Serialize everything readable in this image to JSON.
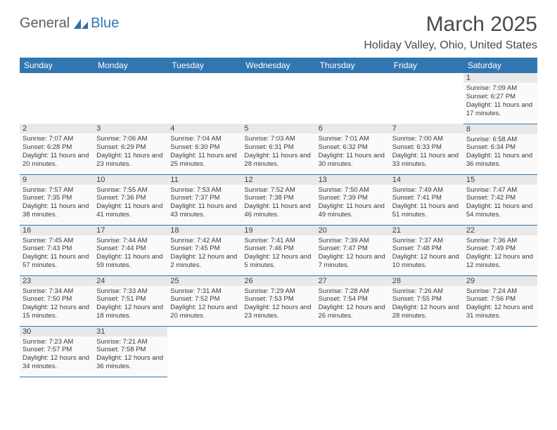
{
  "logo": {
    "word1": "General",
    "word2": "Blue"
  },
  "header": {
    "month_title": "March 2025",
    "location": "Holiday Valley, Ohio, United States"
  },
  "colors": {
    "header_bg": "#3276b1",
    "header_text": "#ffffff",
    "daynum_bg": "#e9e9e9",
    "cell_bg": "#fafafa",
    "border": "#3276b1",
    "text": "#3a3a3a"
  },
  "weekday_labels": [
    "Sunday",
    "Monday",
    "Tuesday",
    "Wednesday",
    "Thursday",
    "Friday",
    "Saturday"
  ],
  "weeks": [
    [
      null,
      null,
      null,
      null,
      null,
      null,
      {
        "n": "1",
        "sr": "7:09 AM",
        "ss": "6:27 PM",
        "dl": "11 hours and 17 minutes."
      }
    ],
    [
      {
        "n": "2",
        "sr": "7:07 AM",
        "ss": "6:28 PM",
        "dl": "11 hours and 20 minutes."
      },
      {
        "n": "3",
        "sr": "7:06 AM",
        "ss": "6:29 PM",
        "dl": "11 hours and 23 minutes."
      },
      {
        "n": "4",
        "sr": "7:04 AM",
        "ss": "6:30 PM",
        "dl": "11 hours and 25 minutes."
      },
      {
        "n": "5",
        "sr": "7:03 AM",
        "ss": "6:31 PM",
        "dl": "11 hours and 28 minutes."
      },
      {
        "n": "6",
        "sr": "7:01 AM",
        "ss": "6:32 PM",
        "dl": "11 hours and 30 minutes."
      },
      {
        "n": "7",
        "sr": "7:00 AM",
        "ss": "6:33 PM",
        "dl": "11 hours and 33 minutes."
      },
      {
        "n": "8",
        "sr": "6:58 AM",
        "ss": "6:34 PM",
        "dl": "11 hours and 36 minutes."
      }
    ],
    [
      {
        "n": "9",
        "sr": "7:57 AM",
        "ss": "7:35 PM",
        "dl": "11 hours and 38 minutes."
      },
      {
        "n": "10",
        "sr": "7:55 AM",
        "ss": "7:36 PM",
        "dl": "11 hours and 41 minutes."
      },
      {
        "n": "11",
        "sr": "7:53 AM",
        "ss": "7:37 PM",
        "dl": "11 hours and 43 minutes."
      },
      {
        "n": "12",
        "sr": "7:52 AM",
        "ss": "7:38 PM",
        "dl": "11 hours and 46 minutes."
      },
      {
        "n": "13",
        "sr": "7:50 AM",
        "ss": "7:39 PM",
        "dl": "11 hours and 49 minutes."
      },
      {
        "n": "14",
        "sr": "7:49 AM",
        "ss": "7:41 PM",
        "dl": "11 hours and 51 minutes."
      },
      {
        "n": "15",
        "sr": "7:47 AM",
        "ss": "7:42 PM",
        "dl": "11 hours and 54 minutes."
      }
    ],
    [
      {
        "n": "16",
        "sr": "7:45 AM",
        "ss": "7:43 PM",
        "dl": "11 hours and 57 minutes."
      },
      {
        "n": "17",
        "sr": "7:44 AM",
        "ss": "7:44 PM",
        "dl": "11 hours and 59 minutes."
      },
      {
        "n": "18",
        "sr": "7:42 AM",
        "ss": "7:45 PM",
        "dl": "12 hours and 2 minutes."
      },
      {
        "n": "19",
        "sr": "7:41 AM",
        "ss": "7:46 PM",
        "dl": "12 hours and 5 minutes."
      },
      {
        "n": "20",
        "sr": "7:39 AM",
        "ss": "7:47 PM",
        "dl": "12 hours and 7 minutes."
      },
      {
        "n": "21",
        "sr": "7:37 AM",
        "ss": "7:48 PM",
        "dl": "12 hours and 10 minutes."
      },
      {
        "n": "22",
        "sr": "7:36 AM",
        "ss": "7:49 PM",
        "dl": "12 hours and 12 minutes."
      }
    ],
    [
      {
        "n": "23",
        "sr": "7:34 AM",
        "ss": "7:50 PM",
        "dl": "12 hours and 15 minutes."
      },
      {
        "n": "24",
        "sr": "7:33 AM",
        "ss": "7:51 PM",
        "dl": "12 hours and 18 minutes."
      },
      {
        "n": "25",
        "sr": "7:31 AM",
        "ss": "7:52 PM",
        "dl": "12 hours and 20 minutes."
      },
      {
        "n": "26",
        "sr": "7:29 AM",
        "ss": "7:53 PM",
        "dl": "12 hours and 23 minutes."
      },
      {
        "n": "27",
        "sr": "7:28 AM",
        "ss": "7:54 PM",
        "dl": "12 hours and 26 minutes."
      },
      {
        "n": "28",
        "sr": "7:26 AM",
        "ss": "7:55 PM",
        "dl": "12 hours and 28 minutes."
      },
      {
        "n": "29",
        "sr": "7:24 AM",
        "ss": "7:56 PM",
        "dl": "12 hours and 31 minutes."
      }
    ],
    [
      {
        "n": "30",
        "sr": "7:23 AM",
        "ss": "7:57 PM",
        "dl": "12 hours and 34 minutes."
      },
      {
        "n": "31",
        "sr": "7:21 AM",
        "ss": "7:58 PM",
        "dl": "12 hours and 36 minutes."
      },
      null,
      null,
      null,
      null,
      null
    ]
  ],
  "labels": {
    "sunrise": "Sunrise:",
    "sunset": "Sunset:",
    "daylight": "Daylight:"
  }
}
